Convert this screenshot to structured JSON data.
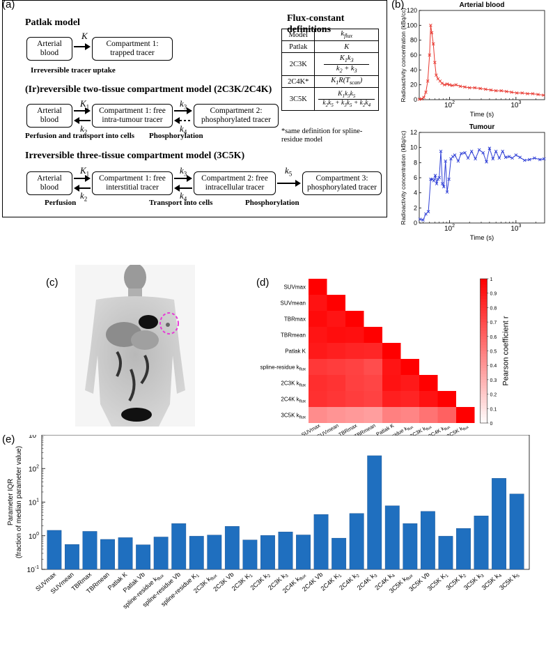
{
  "labels": {
    "a": "(a)",
    "b": "(b)",
    "c": "(c)",
    "d": "(d)",
    "e": "(e)"
  },
  "panel_a": {
    "patlak": {
      "title": "Patlak model",
      "box1": "Arterial blood",
      "rate": "K",
      "box2": "Compartment 1: trapped tracer",
      "caption": "Irreversible tracer uptake"
    },
    "twotissue": {
      "title": "(Ir)reversible two-tissue compartment model (2C3K/2C4K)",
      "box1": "Arterial blood",
      "box2": "Compartment 1: free intra-tumour tracer",
      "box3": "Compartment 2: phosphorylated tracer",
      "caption1": "Perfusion and transport into cells",
      "caption2": "Phosphorylation"
    },
    "threetissue": {
      "title": "Irreversible three-tissue compartment model (3C5K)",
      "box1": "Arterial blood",
      "box2": "Compartment 1: free interstitial tracer",
      "box3": "Compartment 2: free intracellular tracer",
      "box4": "Compartment 3: phosphorylated tracer",
      "caption1": "Perfusion",
      "caption2": "Transport into cells",
      "caption3": "Phosphorylation"
    },
    "flux_table": {
      "title": "Flux-constant definitions",
      "header": [
        "Model",
        "k_flux"
      ],
      "rows": [
        [
          "Patlak",
          "K"
        ],
        [
          "2C3K",
          "K1k3/(k2+k3)"
        ],
        [
          "2C4K*",
          "K1R(Tscan)"
        ],
        [
          "3C5K",
          "K1k3k5/(k2k5+k3k5+k2k4)"
        ]
      ],
      "footnote": "*same definition for spline-residue model"
    }
  },
  "chart_data": [
    {
      "id": "arterial",
      "type": "line",
      "title": "Arterial blood",
      "xlabel": "Time (s)",
      "ylabel": "Radioactivity concentration (kBq/cc)",
      "xscale": "log",
      "xlim": [
        35,
        2700
      ],
      "ylim": [
        0,
        120
      ],
      "xticks": [
        "10^2",
        "10^3"
      ],
      "yticks": [
        0,
        20,
        40,
        60,
        80,
        100,
        120
      ],
      "color": "#e8362e",
      "x": [
        35,
        38,
        41,
        44,
        47,
        50,
        52,
        54,
        57,
        60,
        63,
        67,
        72,
        77,
        84,
        92,
        100,
        110,
        125,
        145,
        170,
        200,
        240,
        290,
        350,
        420,
        500,
        600,
        720,
        860,
        1030,
        1240,
        1490,
        1790,
        2150,
        2600
      ],
      "y": [
        0.5,
        1,
        3,
        10,
        25,
        60,
        100,
        90,
        75,
        50,
        33,
        28,
        25,
        22,
        20,
        21,
        20,
        19,
        20,
        18,
        17,
        16,
        16,
        15,
        14,
        13,
        12,
        12,
        11,
        10,
        9,
        9,
        8,
        8,
        7,
        6
      ]
    },
    {
      "id": "tumour",
      "type": "line",
      "title": "Tumour",
      "xlabel": "Time (s)",
      "ylabel": "Radioactivity concentration (kBq/cc)",
      "xscale": "log",
      "xlim": [
        35,
        2700
      ],
      "ylim": [
        0,
        12
      ],
      "xticks": [
        "10^2",
        "10^3"
      ],
      "yticks": [
        0,
        2,
        4,
        6,
        8,
        10,
        12
      ],
      "color": "#2f3fd6",
      "x": [
        36,
        40,
        44,
        48,
        52,
        55,
        58,
        61,
        64,
        67,
        70,
        74,
        78,
        82,
        87,
        92,
        98,
        105,
        112,
        120,
        135,
        150,
        170,
        190,
        215,
        245,
        280,
        320,
        360,
        400,
        450,
        500,
        560,
        630,
        700,
        790,
        880,
        1000,
        1150,
        1350,
        1600,
        1900,
        2300,
        2650
      ],
      "y": [
        0.5,
        0.4,
        1.2,
        1.5,
        5.8,
        5.8,
        5.6,
        6.3,
        5.2,
        5.8,
        6.0,
        9.5,
        5.2,
        4.8,
        8.2,
        4.1,
        5.8,
        8.5,
        8.8,
        9.0,
        8.2,
        9.2,
        9.3,
        8.6,
        9.5,
        8.5,
        9.7,
        9.3,
        8.1,
        9.9,
        8.5,
        9.5,
        8.6,
        9.5,
        8.7,
        8.8,
        8.6,
        9.0,
        8.7,
        8.3,
        8.4,
        8.6,
        8.4,
        8.5
      ]
    },
    {
      "id": "heatmap",
      "type": "heatmap",
      "labels": [
        "SUVmax",
        "SUVmean",
        "TBRmax",
        "TBRmean",
        "Patlak K",
        "spline-residue k_flux",
        "2C3K k_flux",
        "2C4K k_flux",
        "3C5K k_flux"
      ],
      "values": [
        [
          1
        ],
        [
          0.93,
          1
        ],
        [
          0.96,
          0.92,
          1
        ],
        [
          0.92,
          0.95,
          0.94,
          1
        ],
        [
          0.9,
          0.88,
          0.86,
          0.85,
          1
        ],
        [
          0.78,
          0.76,
          0.74,
          0.7,
          0.92,
          1
        ],
        [
          0.82,
          0.8,
          0.75,
          0.73,
          0.93,
          0.9,
          1
        ],
        [
          0.81,
          0.79,
          0.76,
          0.74,
          0.88,
          0.86,
          0.93,
          1
        ],
        [
          0.45,
          0.42,
          0.4,
          0.38,
          0.5,
          0.48,
          0.55,
          0.62,
          1
        ]
      ],
      "colorbar": {
        "label": "Pearson coefficient r",
        "min": 0,
        "max": 1,
        "ticks": [
          0,
          0.1,
          0.2,
          0.3,
          0.4,
          0.5,
          0.6,
          0.7,
          0.8,
          0.9,
          1
        ]
      }
    },
    {
      "id": "iqr",
      "type": "bar",
      "yscale": "log",
      "ylabel": "Parameter IQR (fraction of median parameter value)",
      "ylim": [
        0.1,
        1000
      ],
      "yticks": [
        "10^-1",
        "10^0",
        "10^1",
        "10^2",
        "10^3"
      ],
      "color": "#1f6fbf",
      "categories": [
        "SUVmax",
        "SUVmean",
        "TBRmax",
        "TBRmean",
        "Patlak K",
        "Patlak Vb",
        "spline-residue k_flux",
        "spline-residue Vb",
        "spline-residue K_1",
        "2C3K k_flux",
        "2C3K Vb",
        "2C3K K_1",
        "2C3K k_2",
        "2C3K k_3",
        "2C4K k_flux",
        "2C4K Vb",
        "2C4K K_1",
        "2C4K k_2",
        "2C4K k_3",
        "2C4K k_4",
        "3C5K k_flux",
        "3C5K Vb",
        "3C5K K_1",
        "3C5K k_2",
        "3C5K k_3",
        "3C5K k_4",
        "3C5K k_5"
      ],
      "values": [
        1.45,
        0.55,
        1.35,
        0.78,
        0.88,
        0.54,
        0.92,
        2.3,
        0.97,
        1.05,
        1.9,
        0.75,
        1.02,
        1.3,
        1.06,
        4.3,
        0.85,
        4.6,
        240,
        7.8,
        2.3,
        5.3,
        0.97,
        1.65,
        3.9,
        51,
        17.5
      ]
    }
  ]
}
